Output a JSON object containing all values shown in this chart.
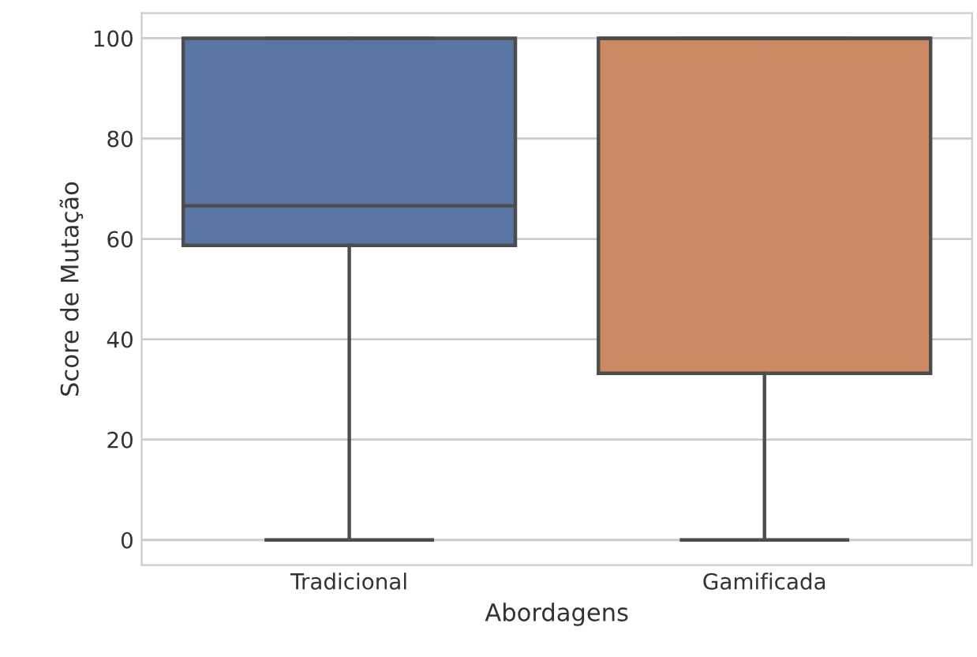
{
  "chart_data": {
    "type": "box",
    "xlabel": "Abordagens",
    "ylabel": "Score de Mutação",
    "categories": [
      "Tradicional",
      "Gamificada"
    ],
    "boxes": [
      {
        "low": 0,
        "q1": 58.7,
        "median": 66.6,
        "q3": 100,
        "high": 100
      },
      {
        "low": 0,
        "q1": 33.2,
        "median": 100,
        "q3": 100,
        "high": 100
      }
    ],
    "colors": [
      "#5975a4",
      "#cc8963"
    ],
    "ylim": [
      -5,
      105
    ],
    "yticks": [
      0,
      20,
      40,
      60,
      80,
      100
    ],
    "grid": "y"
  }
}
